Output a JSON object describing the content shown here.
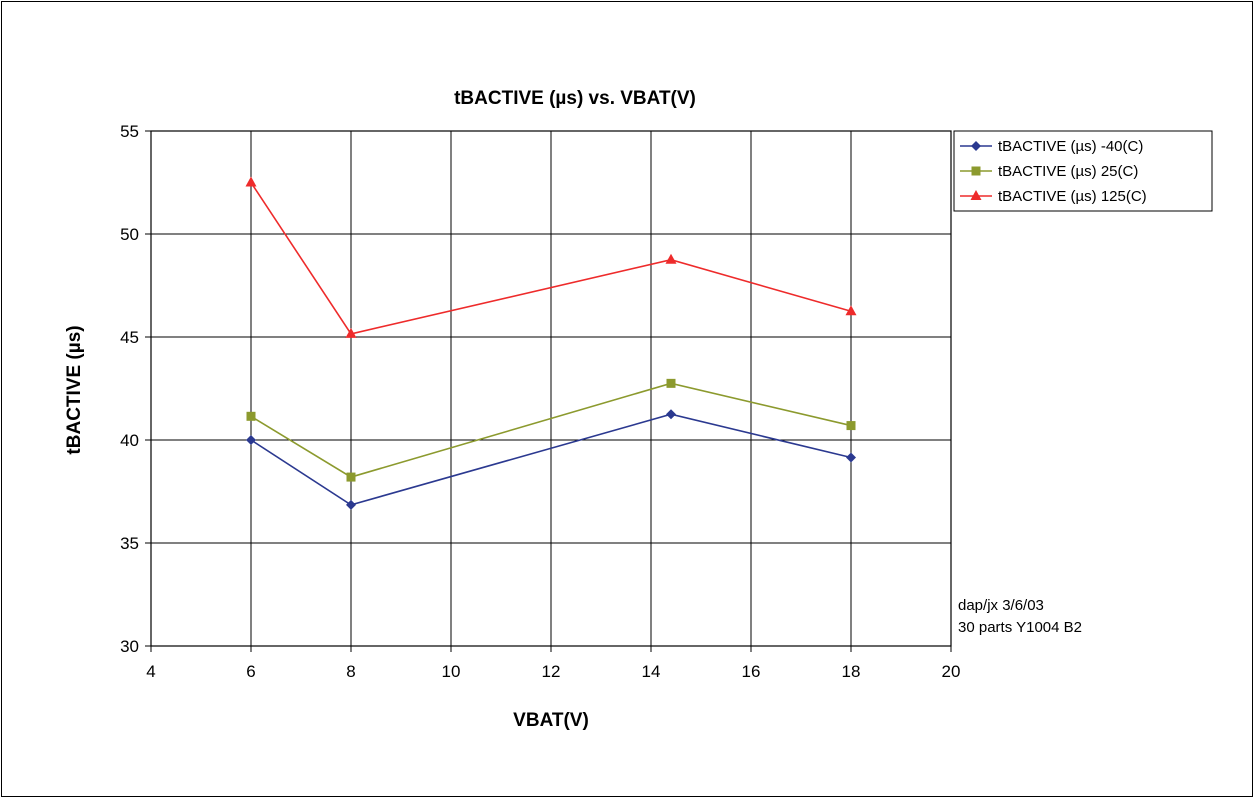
{
  "chart_data": {
    "type": "line",
    "title": "tBACTIVE (µs) vs. VBAT(V)",
    "xlabel": "VBAT(V)",
    "ylabel": "tBACTIVE (µs)",
    "xlim": [
      4,
      20
    ],
    "ylim": [
      30,
      55
    ],
    "xticks": [
      4,
      6,
      8,
      10,
      12,
      14,
      16,
      18,
      20
    ],
    "yticks": [
      30,
      35,
      40,
      45,
      50,
      55
    ],
    "grid": true,
    "legend_position": "right",
    "x": [
      6,
      8,
      14.4,
      18
    ],
    "series": [
      {
        "name": "tBACTIVE (µs) -40(C)",
        "values": [
          40.0,
          36.85,
          41.25,
          39.15
        ],
        "color": "#2b3990",
        "marker": "diamond"
      },
      {
        "name": "tBACTIVE (µs) 25(C)",
        "values": [
          41.15,
          38.2,
          42.75,
          40.7
        ],
        "color": "#8c9a2e",
        "marker": "square"
      },
      {
        "name": "tBACTIVE (µs) 125(C)",
        "values": [
          52.5,
          45.15,
          48.75,
          46.25
        ],
        "color": "#ee2b2b",
        "marker": "triangle"
      }
    ],
    "annotations": [
      "dap/jx 3/6/03",
      "30 parts Y1004 B2"
    ]
  }
}
